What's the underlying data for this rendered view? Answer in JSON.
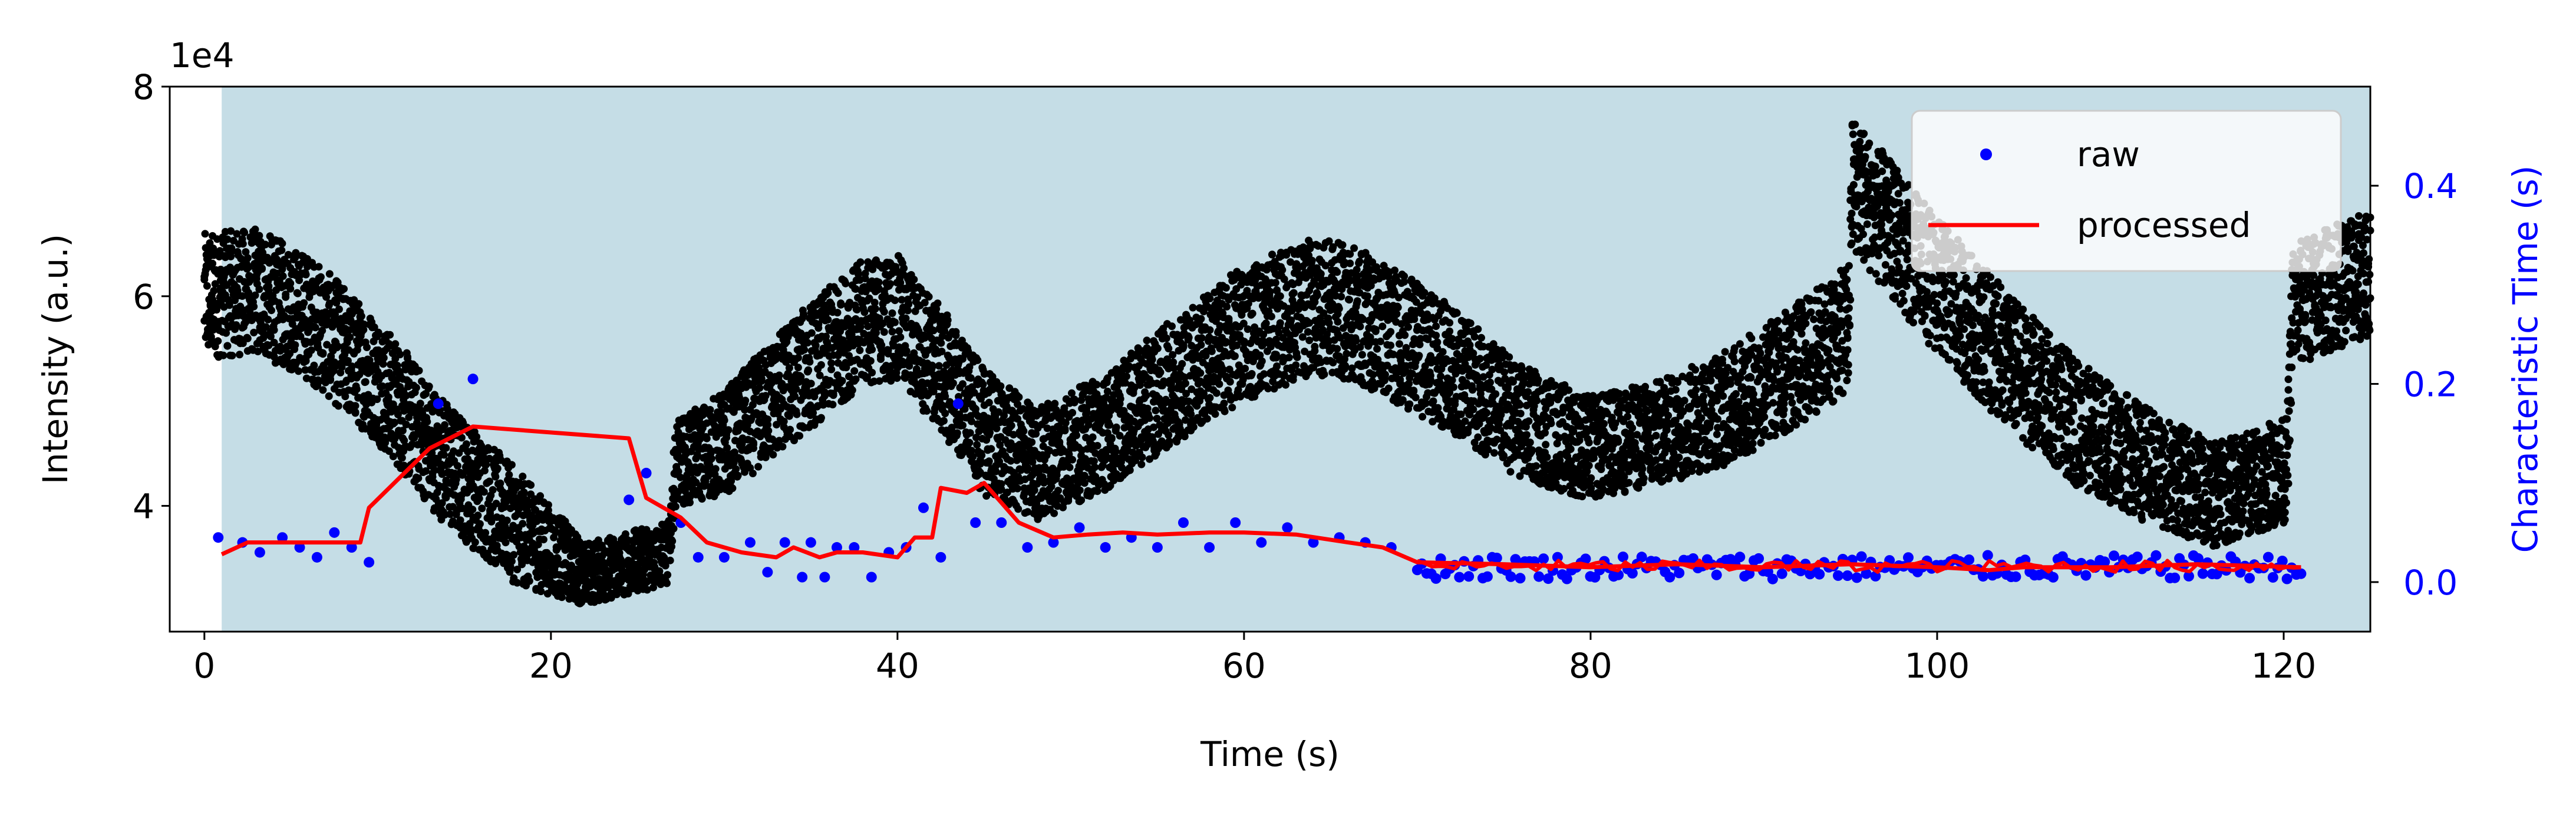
{
  "chart_data": {
    "type": "scatter",
    "xlabel": "Time (s)",
    "ylabel": "Intensity (a.u.)",
    "y2label": "Characteristic Time (s)",
    "offset_label": "1e4",
    "xlim": [
      -2,
      125
    ],
    "ylim": [
      28000,
      80000
    ],
    "y2lim": [
      -0.05,
      0.5
    ],
    "x_ticks": [
      0,
      20,
      40,
      60,
      80,
      100,
      120
    ],
    "y_ticks": [
      40000,
      60000,
      80000
    ],
    "y_tick_labels": [
      "4",
      "6",
      "8"
    ],
    "y2_ticks": [
      0.0,
      0.2,
      0.4
    ],
    "y2_tick_labels": [
      "0.0",
      "0.2",
      "0.4"
    ],
    "shaded_region": [
      1.0,
      125
    ],
    "grid": false,
    "legend_position": "upper right",
    "colors": {
      "shade": "#c5dde6",
      "intensity": "#000000",
      "raw": "#0000ff",
      "processed": "#ff0000",
      "right_axis": "#0000ff"
    },
    "intensity_series": {
      "name": "",
      "description": "Dense oscillating black scatter; envelope centre and half-width shown",
      "x": [
        0,
        3,
        6,
        10,
        14,
        18,
        22,
        26.8,
        27.2,
        30,
        34,
        38,
        40,
        43,
        45,
        48,
        52,
        56,
        60,
        64,
        66,
        68,
        72,
        76,
        80,
        84,
        88,
        92,
        94.9,
        95.1,
        97,
        100,
        104,
        108,
        112,
        116,
        120.2,
        120.5,
        123,
        125
      ],
      "center": [
        60000,
        60500,
        58000,
        52000,
        44000,
        38000,
        33500,
        35500,
        44000,
        46000,
        52000,
        57500,
        58000,
        52000,
        47000,
        44000,
        47000,
        52000,
        56500,
        59000,
        58500,
        57000,
        53000,
        48000,
        45500,
        47000,
        49500,
        53500,
        57000,
        71000,
        67000,
        61000,
        54000,
        48000,
        44000,
        41000,
        43500,
        59000,
        61000,
        62000
      ],
      "half_width": [
        6000,
        6000,
        6000,
        6000,
        6000,
        5500,
        3000,
        3000,
        4000,
        5000,
        6000,
        6000,
        6000,
        6000,
        6000,
        5500,
        5500,
        6000,
        6500,
        6500,
        6500,
        6500,
        6000,
        5500,
        5000,
        5000,
        5500,
        6000,
        6000,
        6500,
        6500,
        6500,
        6500,
        6000,
        5500,
        5000,
        5000,
        6000,
        6000,
        6000
      ]
    },
    "series": [
      {
        "name": "raw",
        "axis": "right",
        "type": "scatter",
        "x": [
          0.8,
          2.2,
          3.2,
          4.5,
          5.5,
          6.5,
          7.5,
          8.5,
          9.5,
          13.5,
          15.5,
          24.5,
          25.5,
          27.5,
          28.5,
          30.0,
          31.5,
          32.5,
          33.5,
          34.5,
          35.0,
          35.8,
          36.5,
          37.5,
          38.5,
          39.5,
          40.5,
          41.5,
          42.5,
          43.5,
          44.5,
          46.0,
          47.5,
          49.0,
          50.5,
          52.0,
          53.5,
          55.0,
          56.5,
          58.0,
          59.5,
          61.0,
          62.5,
          64.0,
          65.5,
          67.0,
          68.5
        ],
        "y": [
          0.045,
          0.04,
          0.03,
          0.045,
          0.035,
          0.025,
          0.05,
          0.035,
          0.02,
          0.18,
          0.205,
          0.083,
          0.11,
          0.06,
          0.025,
          0.025,
          0.04,
          0.01,
          0.04,
          0.005,
          0.04,
          0.005,
          0.035,
          0.035,
          0.005,
          0.03,
          0.035,
          0.075,
          0.025,
          0.18,
          0.06,
          0.06,
          0.035,
          0.04,
          0.055,
          0.035,
          0.045,
          0.035,
          0.06,
          0.035,
          0.06,
          0.04,
          0.055,
          0.04,
          0.045,
          0.04,
          0.035
        ],
        "dense_segment": {
          "x_range": [
            70,
            121
          ],
          "y_mean": 0.015,
          "y_spread": 0.012
        }
      },
      {
        "name": "processed",
        "axis": "right",
        "type": "line",
        "x": [
          1.0,
          2.5,
          5.5,
          8.0,
          9.0,
          9.5,
          13.0,
          15.5,
          24.5,
          25.5,
          27.5,
          29.0,
          31.0,
          33.0,
          34.0,
          35.5,
          36.5,
          38.0,
          40.0,
          41.0,
          42.0,
          42.5,
          44.0,
          45.0,
          47.0,
          49.0,
          51.0,
          53.0,
          55.0,
          58.0,
          60.0,
          63.0,
          66.0,
          68.0,
          70.0,
          75.0,
          80.0,
          85.0,
          90.0,
          95.0,
          100.0,
          103.0,
          105.0,
          110.0,
          115.0,
          121.0
        ],
        "y": [
          0.028,
          0.04,
          0.04,
          0.04,
          0.04,
          0.075,
          0.135,
          0.157,
          0.145,
          0.085,
          0.065,
          0.04,
          0.03,
          0.025,
          0.035,
          0.025,
          0.03,
          0.03,
          0.025,
          0.045,
          0.045,
          0.095,
          0.09,
          0.1,
          0.06,
          0.045,
          0.048,
          0.05,
          0.048,
          0.05,
          0.05,
          0.048,
          0.04,
          0.035,
          0.02,
          0.018,
          0.015,
          0.018,
          0.015,
          0.018,
          0.015,
          0.012,
          0.015,
          0.015,
          0.018,
          0.015
        ]
      }
    ]
  }
}
